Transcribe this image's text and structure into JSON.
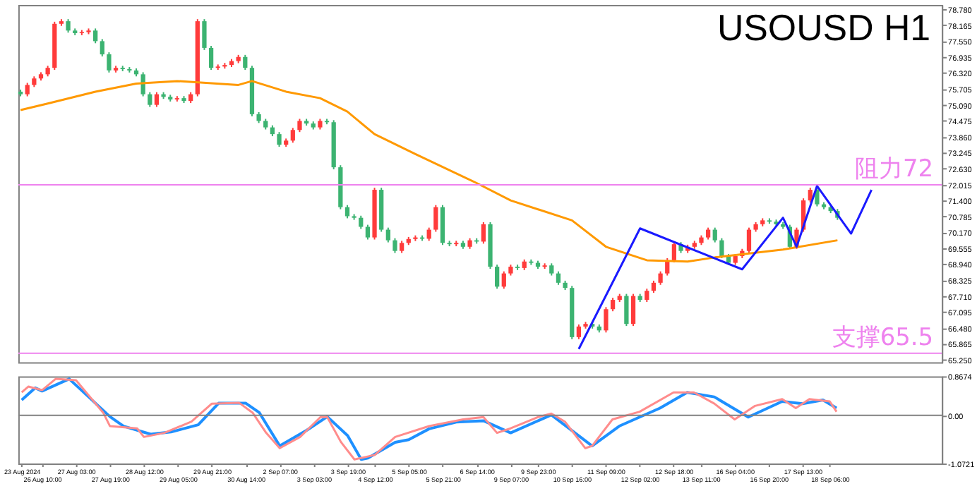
{
  "chart_data": [
    {
      "type": "candlestick",
      "title": "USOUSD H1",
      "categories": [
        null,
        null,
        null,
        null,
        null,
        null,
        null,
        null,
        null,
        null,
        null,
        null,
        null,
        null,
        null,
        null,
        null,
        null,
        null,
        null,
        null,
        null,
        null,
        null,
        null,
        null,
        null,
        null,
        null,
        null,
        null,
        null,
        null,
        null,
        null,
        null,
        null,
        null,
        null,
        null,
        null,
        null,
        null,
        null,
        null,
        null,
        null,
        null,
        null,
        null,
        null,
        null,
        null,
        null,
        null,
        null,
        null,
        null,
        null,
        null,
        null,
        null,
        null,
        null,
        null,
        null,
        null,
        null,
        null,
        null,
        null,
        null,
        null,
        null,
        null,
        null,
        null,
        null,
        null,
        null,
        null,
        null,
        null,
        null,
        null,
        null,
        null,
        null,
        null,
        null,
        null,
        null,
        null,
        null,
        null,
        null,
        null,
        null,
        null,
        null,
        null,
        null,
        null,
        null,
        null,
        null,
        null,
        null,
        null,
        null,
        null,
        null,
        null,
        null,
        null,
        null,
        null,
        null,
        null,
        null,
        null,
        null,
        null,
        null,
        null,
        null,
        null,
        null,
        null,
        null,
        null,
        null,
        null,
        null,
        null,
        null
      ],
      "ohlc": [
        [
          75.6,
          75.68,
          75.42,
          75.5
        ],
        [
          75.5,
          75.94,
          75.42,
          75.86
        ],
        [
          75.86,
          76.19,
          75.78,
          76.11
        ],
        [
          76.11,
          76.35,
          76.03,
          76.27
        ],
        [
          76.27,
          76.6,
          76.19,
          76.52
        ],
        [
          76.52,
          78.3,
          76.44,
          78.22
        ],
        [
          78.22,
          78.4,
          78.14,
          78.32
        ],
        [
          78.32,
          78.4,
          77.88,
          77.96
        ],
        [
          77.96,
          78.04,
          77.78,
          77.86
        ],
        [
          77.86,
          77.98,
          77.78,
          77.9
        ],
        [
          77.9,
          78.04,
          77.82,
          77.96
        ],
        [
          77.96,
          78.04,
          77.47,
          77.55
        ],
        [
          77.55,
          77.63,
          76.96,
          77.04
        ],
        [
          77.04,
          77.12,
          76.34,
          76.42
        ],
        [
          76.42,
          76.6,
          76.34,
          76.52
        ],
        [
          76.52,
          76.6,
          76.39,
          76.47
        ],
        [
          76.47,
          76.55,
          76.34,
          76.42
        ],
        [
          76.42,
          76.5,
          76.19,
          76.27
        ],
        [
          76.27,
          76.35,
          75.42,
          75.5
        ],
        [
          75.5,
          75.58,
          75.01,
          75.09
        ],
        [
          75.09,
          75.58,
          75.01,
          75.5
        ],
        [
          75.5,
          75.58,
          75.32,
          75.4
        ],
        [
          75.4,
          75.48,
          75.22,
          75.3
        ],
        [
          75.3,
          75.43,
          75.22,
          75.35
        ],
        [
          75.35,
          75.43,
          75.16,
          75.24
        ],
        [
          75.24,
          75.58,
          75.16,
          75.5
        ],
        [
          75.5,
          78.4,
          75.42,
          78.32
        ],
        [
          78.32,
          78.4,
          77.21,
          77.29
        ],
        [
          77.29,
          77.37,
          76.44,
          76.52
        ],
        [
          76.52,
          76.65,
          76.44,
          76.57
        ],
        [
          76.57,
          76.71,
          76.49,
          76.63
        ],
        [
          76.63,
          76.86,
          76.55,
          76.78
        ],
        [
          76.78,
          77.02,
          76.7,
          76.94
        ],
        [
          76.94,
          77.02,
          76.44,
          76.52
        ],
        [
          76.52,
          76.6,
          74.65,
          74.73
        ],
        [
          74.73,
          74.81,
          74.39,
          74.47
        ],
        [
          74.47,
          74.55,
          74.14,
          74.22
        ],
        [
          74.22,
          74.3,
          73.88,
          73.96
        ],
        [
          73.96,
          74.04,
          73.47,
          73.55
        ],
        [
          73.55,
          73.79,
          73.47,
          73.71
        ],
        [
          73.71,
          74.2,
          73.63,
          74.12
        ],
        [
          74.12,
          74.55,
          74.04,
          74.47
        ],
        [
          74.47,
          74.55,
          74.29,
          74.37
        ],
        [
          74.37,
          74.45,
          74.14,
          74.22
        ],
        [
          74.22,
          74.55,
          74.14,
          74.47
        ],
        [
          74.47,
          74.55,
          74.34,
          74.42
        ],
        [
          74.42,
          74.5,
          72.6,
          72.68
        ],
        [
          72.68,
          72.76,
          71.06,
          71.14
        ],
        [
          71.14,
          71.22,
          70.71,
          70.79
        ],
        [
          70.79,
          70.87,
          70.65,
          70.73
        ],
        [
          70.73,
          70.81,
          70.3,
          70.38
        ],
        [
          70.38,
          70.46,
          69.89,
          69.97
        ],
        [
          69.97,
          71.89,
          69.89,
          71.81
        ],
        [
          71.81,
          71.89,
          70.19,
          70.27
        ],
        [
          70.27,
          70.35,
          69.78,
          69.86
        ],
        [
          69.86,
          69.94,
          69.37,
          69.45
        ],
        [
          69.45,
          69.84,
          69.37,
          69.76
        ],
        [
          69.76,
          69.99,
          69.68,
          69.91
        ],
        [
          69.91,
          70.05,
          69.83,
          69.97
        ],
        [
          69.97,
          70.05,
          69.84,
          69.92
        ],
        [
          69.92,
          70.35,
          69.84,
          70.27
        ],
        [
          70.27,
          71.22,
          70.19,
          71.14
        ],
        [
          71.14,
          71.22,
          69.68,
          69.76
        ],
        [
          69.76,
          69.84,
          69.63,
          69.71
        ],
        [
          69.71,
          69.84,
          69.63,
          69.76
        ],
        [
          69.76,
          69.84,
          69.53,
          69.61
        ],
        [
          69.61,
          69.94,
          69.53,
          69.86
        ],
        [
          69.86,
          69.94,
          69.73,
          69.81
        ],
        [
          69.81,
          70.56,
          69.73,
          70.48
        ],
        [
          70.48,
          70.56,
          68.76,
          68.84
        ],
        [
          68.84,
          68.92,
          67.99,
          68.07
        ],
        [
          68.07,
          68.66,
          67.99,
          68.58
        ],
        [
          68.58,
          68.92,
          68.5,
          68.84
        ],
        [
          68.84,
          68.92,
          68.71,
          68.79
        ],
        [
          68.79,
          69.12,
          68.71,
          69.04
        ],
        [
          69.04,
          69.12,
          68.91,
          68.99
        ],
        [
          68.99,
          69.07,
          68.76,
          68.84
        ],
        [
          68.84,
          68.97,
          68.76,
          68.89
        ],
        [
          68.89,
          68.97,
          68.5,
          68.58
        ],
        [
          68.58,
          68.66,
          68.14,
          68.22
        ],
        [
          68.22,
          68.3,
          67.94,
          68.02
        ],
        [
          68.02,
          68.1,
          66.04,
          66.12
        ],
        [
          66.12,
          66.61,
          66.04,
          66.53
        ],
        [
          66.53,
          66.71,
          66.45,
          66.63
        ],
        [
          66.63,
          66.71,
          66.45,
          66.53
        ],
        [
          66.53,
          66.61,
          66.3,
          66.38
        ],
        [
          66.38,
          67.28,
          66.3,
          67.2
        ],
        [
          67.2,
          67.64,
          67.12,
          67.56
        ],
        [
          67.56,
          67.79,
          67.48,
          67.71
        ],
        [
          67.71,
          67.79,
          66.55,
          66.63
        ],
        [
          66.63,
          67.79,
          66.55,
          67.71
        ],
        [
          67.71,
          67.79,
          67.48,
          67.56
        ],
        [
          67.56,
          67.99,
          67.48,
          67.91
        ],
        [
          67.91,
          68.3,
          67.83,
          68.22
        ],
        [
          68.22,
          68.66,
          68.14,
          68.58
        ],
        [
          68.58,
          69.17,
          68.5,
          69.09
        ],
        [
          69.09,
          69.79,
          69.01,
          69.71
        ],
        [
          69.71,
          69.79,
          69.37,
          69.45
        ],
        [
          69.45,
          69.69,
          69.37,
          69.61
        ],
        [
          69.61,
          69.84,
          69.53,
          69.76
        ],
        [
          69.76,
          70.05,
          69.68,
          69.97
        ],
        [
          69.97,
          70.35,
          69.89,
          70.27
        ],
        [
          70.27,
          70.35,
          69.78,
          69.86
        ],
        [
          69.86,
          69.94,
          69.17,
          69.25
        ],
        [
          69.25,
          69.33,
          68.91,
          68.99
        ],
        [
          68.99,
          69.33,
          68.91,
          69.25
        ],
        [
          69.25,
          69.53,
          69.17,
          69.45
        ],
        [
          69.45,
          70.35,
          69.37,
          70.27
        ],
        [
          70.27,
          70.56,
          70.19,
          70.48
        ],
        [
          70.48,
          70.71,
          70.4,
          70.63
        ],
        [
          70.63,
          70.71,
          70.5,
          70.58
        ],
        [
          70.58,
          70.66,
          70.4,
          70.48
        ],
        [
          70.48,
          70.56,
          70.3,
          70.38
        ],
        [
          70.38,
          70.46,
          69.53,
          69.61
        ],
        [
          69.61,
          70.35,
          69.53,
          70.27
        ],
        [
          70.27,
          71.48,
          70.19,
          71.4
        ],
        [
          71.4,
          71.89,
          71.32,
          71.81
        ],
        [
          71.81,
          71.89,
          71.17,
          71.25
        ],
        [
          71.25,
          71.33,
          71.06,
          71.14
        ],
        [
          71.14,
          71.22,
          70.91,
          70.99
        ],
        [
          70.99,
          71.07,
          70.65,
          70.73
        ],
        null,
        null,
        null,
        null,
        null,
        null,
        null,
        null,
        null,
        null,
        null,
        null,
        null,
        null,
        null
      ],
      "colors": [
        "#3cb371",
        "#ff3b3b",
        "#ff3b3b",
        "#ff3b3b",
        "#ff3b3b",
        "#ff3b3b",
        "#ff3b3b",
        "#3cb371",
        "#3cb371",
        "#ff3b3b",
        "#ff3b3b",
        "#3cb371",
        "#3cb371",
        "#3cb371",
        "#ff3b3b",
        "#3cb371",
        "#3cb371",
        "#3cb371",
        "#3cb371",
        "#3cb371",
        "#ff3b3b",
        "#3cb371",
        "#3cb371",
        "#ff3b3b",
        "#3cb371",
        "#ff3b3b",
        "#ff3b3b",
        "#3cb371",
        "#3cb371",
        "#ff3b3b",
        "#ff3b3b",
        "#ff3b3b",
        "#ff3b3b",
        "#3cb371",
        "#3cb371",
        "#3cb371",
        "#3cb371",
        "#3cb371",
        "#3cb371",
        "#ff3b3b",
        "#ff3b3b",
        "#ff3b3b",
        "#3cb371",
        "#3cb371",
        "#ff3b3b",
        "#3cb371",
        "#3cb371",
        "#3cb371",
        "#3cb371",
        "#3cb371",
        "#3cb371",
        "#3cb371",
        "#ff3b3b",
        "#3cb371",
        "#3cb371",
        "#3cb371",
        "#ff3b3b",
        "#ff3b3b",
        "#ff3b3b",
        "#3cb371",
        "#ff3b3b",
        "#ff3b3b",
        "#3cb371",
        "#3cb371",
        "#ff3b3b",
        "#3cb371",
        "#ff3b3b",
        "#3cb371",
        "#ff3b3b",
        "#3cb371",
        "#3cb371",
        "#ff3b3b",
        "#ff3b3b",
        "#3cb371",
        "#ff3b3b",
        "#3cb371",
        "#3cb371",
        "#ff3b3b",
        "#3cb371",
        "#3cb371",
        "#3cb371",
        "#3cb371",
        "#ff3b3b",
        "#ff3b3b",
        "#3cb371",
        "#3cb371",
        "#ff3b3b",
        "#ff3b3b",
        "#ff3b3b",
        "#3cb371",
        "#ff3b3b",
        "#3cb371",
        "#ff3b3b",
        "#ff3b3b",
        "#ff3b3b",
        "#ff3b3b",
        "#ff3b3b",
        "#3cb371",
        "#ff3b3b",
        "#ff3b3b",
        "#ff3b3b",
        "#ff3b3b",
        "#3cb371",
        "#3cb371",
        "#3cb371",
        "#ff3b3b",
        "#ff3b3b",
        "#ff3b3b",
        "#ff3b3b",
        "#ff3b3b",
        "#3cb371",
        "#3cb371",
        "#3cb371",
        "#3cb371",
        "#ff3b3b",
        "#ff3b3b",
        "#ff3b3b",
        "#3cb371",
        "#3cb371",
        "#3cb371",
        "#3cb371",
        null,
        null,
        null,
        null,
        null,
        null,
        null,
        null,
        null,
        null,
        null,
        null,
        null,
        null,
        null
      ],
      "series": [
        {
          "type": "line",
          "color": "#ff9900",
          "values": [
            74.89,
            null,
            null,
            null,
            75.14,
            null,
            null,
            null,
            null,
            null,
            null,
            75.6,
            null,
            null,
            null,
            null,
            null,
            75.91,
            null,
            null,
            null,
            null,
            null,
            76.01,
            null,
            null,
            null,
            null,
            null,
            null,
            null,
            null,
            75.86,
            null,
            76.01,
            null,
            null,
            null,
            null,
            75.6,
            null,
            null,
            null,
            null,
            75.35,
            null,
            null,
            null,
            74.83,
            null,
            null,
            null,
            73.96,
            null,
            null,
            null,
            null,
            null,
            73.19,
            null,
            null,
            null,
            null,
            null,
            null,
            null,
            null,
            72.07,
            null,
            null,
            null,
            null,
            71.4,
            null,
            null,
            null,
            null,
            null,
            null,
            null,
            null,
            70.63,
            null,
            null,
            null,
            null,
            69.61,
            null,
            null,
            null,
            null,
            null,
            69.09,
            null,
            null,
            null,
            null,
            null,
            69.04,
            null,
            null,
            null,
            69.2,
            null,
            null,
            null,
            null,
            null,
            null,
            null,
            null,
            null,
            69.5,
            null,
            null,
            null,
            null,
            null,
            null,
            null,
            69.86,
            null,
            null,
            null,
            null,
            null,
            null,
            null,
            null,
            null,
            null,
            null,
            null,
            null,
            null,
            null
          ]
        },
        {
          "type": "line",
          "color": "#1a1aff",
          "values": [
            null,
            null,
            null,
            null,
            null,
            null,
            null,
            null,
            null,
            null,
            null,
            null,
            null,
            null,
            null,
            null,
            null,
            null,
            null,
            null,
            null,
            null,
            null,
            null,
            null,
            null,
            null,
            null,
            null,
            null,
            null,
            null,
            null,
            null,
            null,
            null,
            null,
            null,
            null,
            null,
            null,
            null,
            null,
            null,
            null,
            null,
            null,
            null,
            null,
            null,
            null,
            null,
            null,
            null,
            null,
            null,
            null,
            null,
            null,
            null,
            null,
            null,
            null,
            null,
            null,
            null,
            null,
            null,
            null,
            null,
            null,
            null,
            null,
            null,
            null,
            null,
            null,
            null,
            null,
            null,
            null,
            null,
            65.66,
            null,
            null,
            null,
            null,
            null,
            null,
            null,
            null,
            70.32,
            null,
            null,
            null,
            null,
            null,
            null,
            null,
            null,
            null,
            null,
            null,
            null,
            null,
            null,
            68.74,
            null,
            null,
            null,
            null,
            null,
            70.73,
            null,
            69.61,
            null,
            null,
            71.96,
            null,
            null,
            null,
            null,
            70.12,
            null,
            null,
            71.81,
            null,
            null,
            null,
            null,
            null,
            null,
            null,
            null,
            null,
            null
          ]
        }
      ],
      "ylim": [
        65.15,
        78.95
      ],
      "yticks": [
        {
          "value": 65.25,
          "label": "65.250"
        },
        {
          "value": 65.865,
          "label": "65.865"
        },
        {
          "value": 66.48,
          "label": "66.480"
        },
        {
          "value": 67.095,
          "label": "67.095"
        },
        {
          "value": 67.71,
          "label": "67.710"
        },
        {
          "value": 68.325,
          "label": "68.325"
        },
        {
          "value": 68.94,
          "label": "68.940"
        },
        {
          "value": 69.555,
          "label": "69.555"
        },
        {
          "value": 70.17,
          "label": "70.170"
        },
        {
          "value": 70.785,
          "label": "70.785"
        },
        {
          "value": 71.4,
          "label": "71.400"
        },
        {
          "value": 72.015,
          "label": "72.015"
        },
        {
          "value": 72.63,
          "label": "72.630"
        },
        {
          "value": 73.245,
          "label": "73.245"
        },
        {
          "value": 73.86,
          "label": "73.860"
        },
        {
          "value": 74.475,
          "label": "74.475"
        },
        {
          "value": 75.09,
          "label": "75.090"
        },
        {
          "value": 75.705,
          "label": "75.705"
        },
        {
          "value": 76.32,
          "label": "76.320"
        },
        {
          "value": 76.935,
          "label": "76.935"
        },
        {
          "value": 77.55,
          "label": "77.550"
        },
        {
          "value": 78.165,
          "label": "78.165"
        },
        {
          "value": 78.78,
          "label": "78.780"
        }
      ],
      "tick_labels": "y",
      "ref_lines": [
        {
          "axis": "y",
          "value": 72,
          "label": "阻力72",
          "color": "#ee82ee"
        },
        {
          "axis": "y",
          "value": 65.5,
          "label": "支撑65.5",
          "color": "#ee82ee"
        }
      ]
    },
    {
      "type": "line",
      "categories": [
        "23 Aug 2024",
        null,
        null,
        "26 Aug 10:00",
        null,
        null,
        null,
        null,
        "27 Aug 03:00",
        null,
        null,
        null,
        null,
        "27 Aug 19:00",
        null,
        null,
        null,
        null,
        "28 Aug 12:00",
        null,
        null,
        null,
        null,
        "29 Aug 05:00",
        null,
        null,
        null,
        null,
        "29 Aug 21:00",
        null,
        null,
        null,
        null,
        "30 Aug 14:00",
        null,
        null,
        null,
        null,
        "2 Sep 07:00",
        null,
        null,
        null,
        null,
        "3 Sep 03:00",
        null,
        null,
        null,
        null,
        "3 Sep 19:00",
        null,
        null,
        null,
        "4 Sep 12:00",
        null,
        null,
        null,
        null,
        "5 Sep 05:00",
        null,
        null,
        null,
        null,
        "5 Sep 21:00",
        null,
        null,
        null,
        null,
        "6 Sep 14:00",
        null,
        null,
        null,
        null,
        "9 Sep 07:00",
        null,
        null,
        null,
        "9 Sep 23:00",
        null,
        null,
        null,
        null,
        "10 Sep 16:00",
        null,
        null,
        null,
        null,
        "11 Sep 09:00",
        null,
        null,
        null,
        null,
        "12 Sep 02:00",
        null,
        null,
        null,
        null,
        "12 Sep 18:00",
        null,
        null,
        null,
        "13 Sep 11:00",
        null,
        null,
        null,
        null,
        "16 Sep 04:00",
        null,
        null,
        null,
        null,
        "16 Sep 20:00",
        null,
        null,
        null,
        null,
        "17 Sep 13:00",
        null,
        null,
        null,
        "18 Sep 06:00",
        null,
        null,
        null,
        null,
        null,
        null,
        null,
        null,
        null,
        null,
        null,
        null,
        null,
        null,
        null,
        null
      ],
      "series": [
        {
          "color": "#1e90ff",
          "values": [
            0.34,
            null,
            0.61,
            0.54,
            null,
            null,
            null,
            0.81,
            null,
            null,
            null,
            null,
            null,
            -0.03,
            null,
            -0.24,
            null,
            null,
            null,
            -0.42,
            null,
            null,
            -0.37,
            null,
            null,
            null,
            -0.21,
            null,
            null,
            0.27,
            null,
            null,
            null,
            0.27,
            null,
            0.06,
            null,
            null,
            -0.68,
            null,
            null,
            null,
            -0.33,
            null,
            null,
            -0.03,
            null,
            null,
            -0.45,
            null,
            -0.98,
            -0.95,
            null,
            null,
            null,
            -0.6,
            null,
            -0.54,
            null,
            null,
            -0.3,
            null,
            null,
            null,
            -0.15,
            null,
            null,
            null,
            -0.12,
            null,
            null,
            null,
            -0.39,
            null,
            null,
            null,
            null,
            null,
            0.01,
            null,
            null,
            null,
            null,
            null,
            -0.68,
            null,
            null,
            null,
            -0.24,
            null,
            null,
            null,
            null,
            null,
            0.16,
            null,
            null,
            null,
            0.51,
            null,
            null,
            null,
            0.41,
            null,
            null,
            null,
            null,
            -0.04,
            null,
            null,
            null,
            null,
            0.31,
            null,
            null,
            0.26,
            null,
            null,
            0.34,
            null,
            0.16,
            null,
            null,
            null,
            null,
            null,
            null,
            null,
            null,
            null,
            null,
            null,
            null,
            null,
            null,
            null
          ]
        },
        {
          "color": "#ff8c8c",
          "values": [
            0.51,
            0.64,
            null,
            0.56,
            null,
            0.81,
            null,
            null,
            0.78,
            null,
            null,
            null,
            0.06,
            -0.24,
            null,
            null,
            null,
            -0.29,
            -0.48,
            null,
            null,
            -0.39,
            null,
            null,
            null,
            -0.14,
            null,
            null,
            0.26,
            null,
            null,
            null,
            0.28,
            null,
            0.06,
            null,
            -0.39,
            null,
            -0.73,
            null,
            null,
            -0.48,
            null,
            null,
            -0.04,
            -0.04,
            null,
            -0.59,
            null,
            -0.98,
            null,
            null,
            -0.88,
            null,
            null,
            -0.48,
            null,
            null,
            null,
            null,
            -0.24,
            null,
            null,
            null,
            null,
            -0.09,
            null,
            null,
            -0.04,
            null,
            -0.39,
            null,
            -0.29,
            null,
            null,
            null,
            -0.04,
            null,
            0.04,
            null,
            -0.14,
            null,
            null,
            -0.73,
            -0.68,
            null,
            null,
            -0.09,
            null,
            null,
            null,
            0.08,
            null,
            null,
            null,
            null,
            0.51,
            null,
            null,
            0.51,
            null,
            null,
            0.26,
            null,
            null,
            -0.09,
            null,
            null,
            0.21,
            null,
            null,
            null,
            0.36,
            null,
            0.16,
            null,
            0.36,
            null,
            null,
            0.31,
            0.08,
            null,
            null,
            null,
            null,
            null,
            null,
            null,
            null,
            null,
            null,
            null,
            null,
            null,
            null,
            null
          ]
        }
      ],
      "ylim": [
        -1.0721,
        0.8674
      ],
      "yticks": [
        {
          "value": 0.8674,
          "label": "0.8674"
        },
        {
          "value": 0,
          "label": "0.00"
        },
        {
          "value": -1.0721,
          "label": "-1.0721"
        }
      ],
      "ref_lines": [
        {
          "axis": "y",
          "value": 0,
          "color": "#808080"
        }
      ]
    }
  ]
}
